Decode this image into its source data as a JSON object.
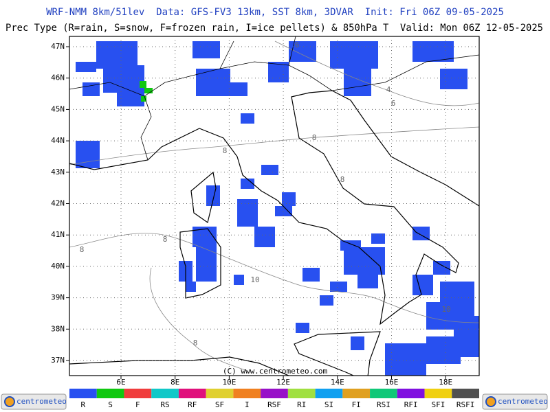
{
  "header": {
    "line1": "WRF-NMM 8km/51lev  Data: GFS-FV3 13km, SST 8km, 3DVAR  Init: Fri 06Z 09-05-2025",
    "line2": "Prec Type (R=rain, S=snow, F=frozen rain, I=ice pellets) & 850hPa T  Valid: Mon 06Z 12-05-2025"
  },
  "map": {
    "lat_labels": [
      "47N",
      "46N",
      "45N",
      "44N",
      "43N",
      "42N",
      "41N",
      "40N",
      "39N",
      "38N",
      "37N"
    ],
    "lon_labels": [
      "6E",
      "8E",
      "10E",
      "12E",
      "14E",
      "16E",
      "18E"
    ],
    "contour_labels": [
      "6",
      "4",
      "6",
      "8",
      "8",
      "8",
      "8",
      "8",
      "10",
      "10",
      "8"
    ],
    "copyright": "(C) www.centrometeo.com"
  },
  "legend": {
    "items": [
      {
        "label": "R",
        "color": "#2850f0"
      },
      {
        "label": "S",
        "color": "#10c810"
      },
      {
        "label": "F",
        "color": "#f03c3c"
      },
      {
        "label": "RS",
        "color": "#10c8c8"
      },
      {
        "label": "RF",
        "color": "#e0107c"
      },
      {
        "label": "SF",
        "color": "#e0d030"
      },
      {
        "label": "I",
        "color": "#f08020"
      },
      {
        "label": "RSF",
        "color": "#9810c8"
      },
      {
        "label": "RI",
        "color": "#a0e040"
      },
      {
        "label": "SI",
        "color": "#10a0f0"
      },
      {
        "label": "FI",
        "color": "#e0a020"
      },
      {
        "label": "RSI",
        "color": "#10c878"
      },
      {
        "label": "RFI",
        "color": "#8010e0"
      },
      {
        "label": "SFI",
        "color": "#f0d010"
      },
      {
        "label": "RSFI",
        "color": "#505050"
      }
    ]
  },
  "logos": {
    "left": "centrometeo",
    "right": "centrometeo"
  }
}
